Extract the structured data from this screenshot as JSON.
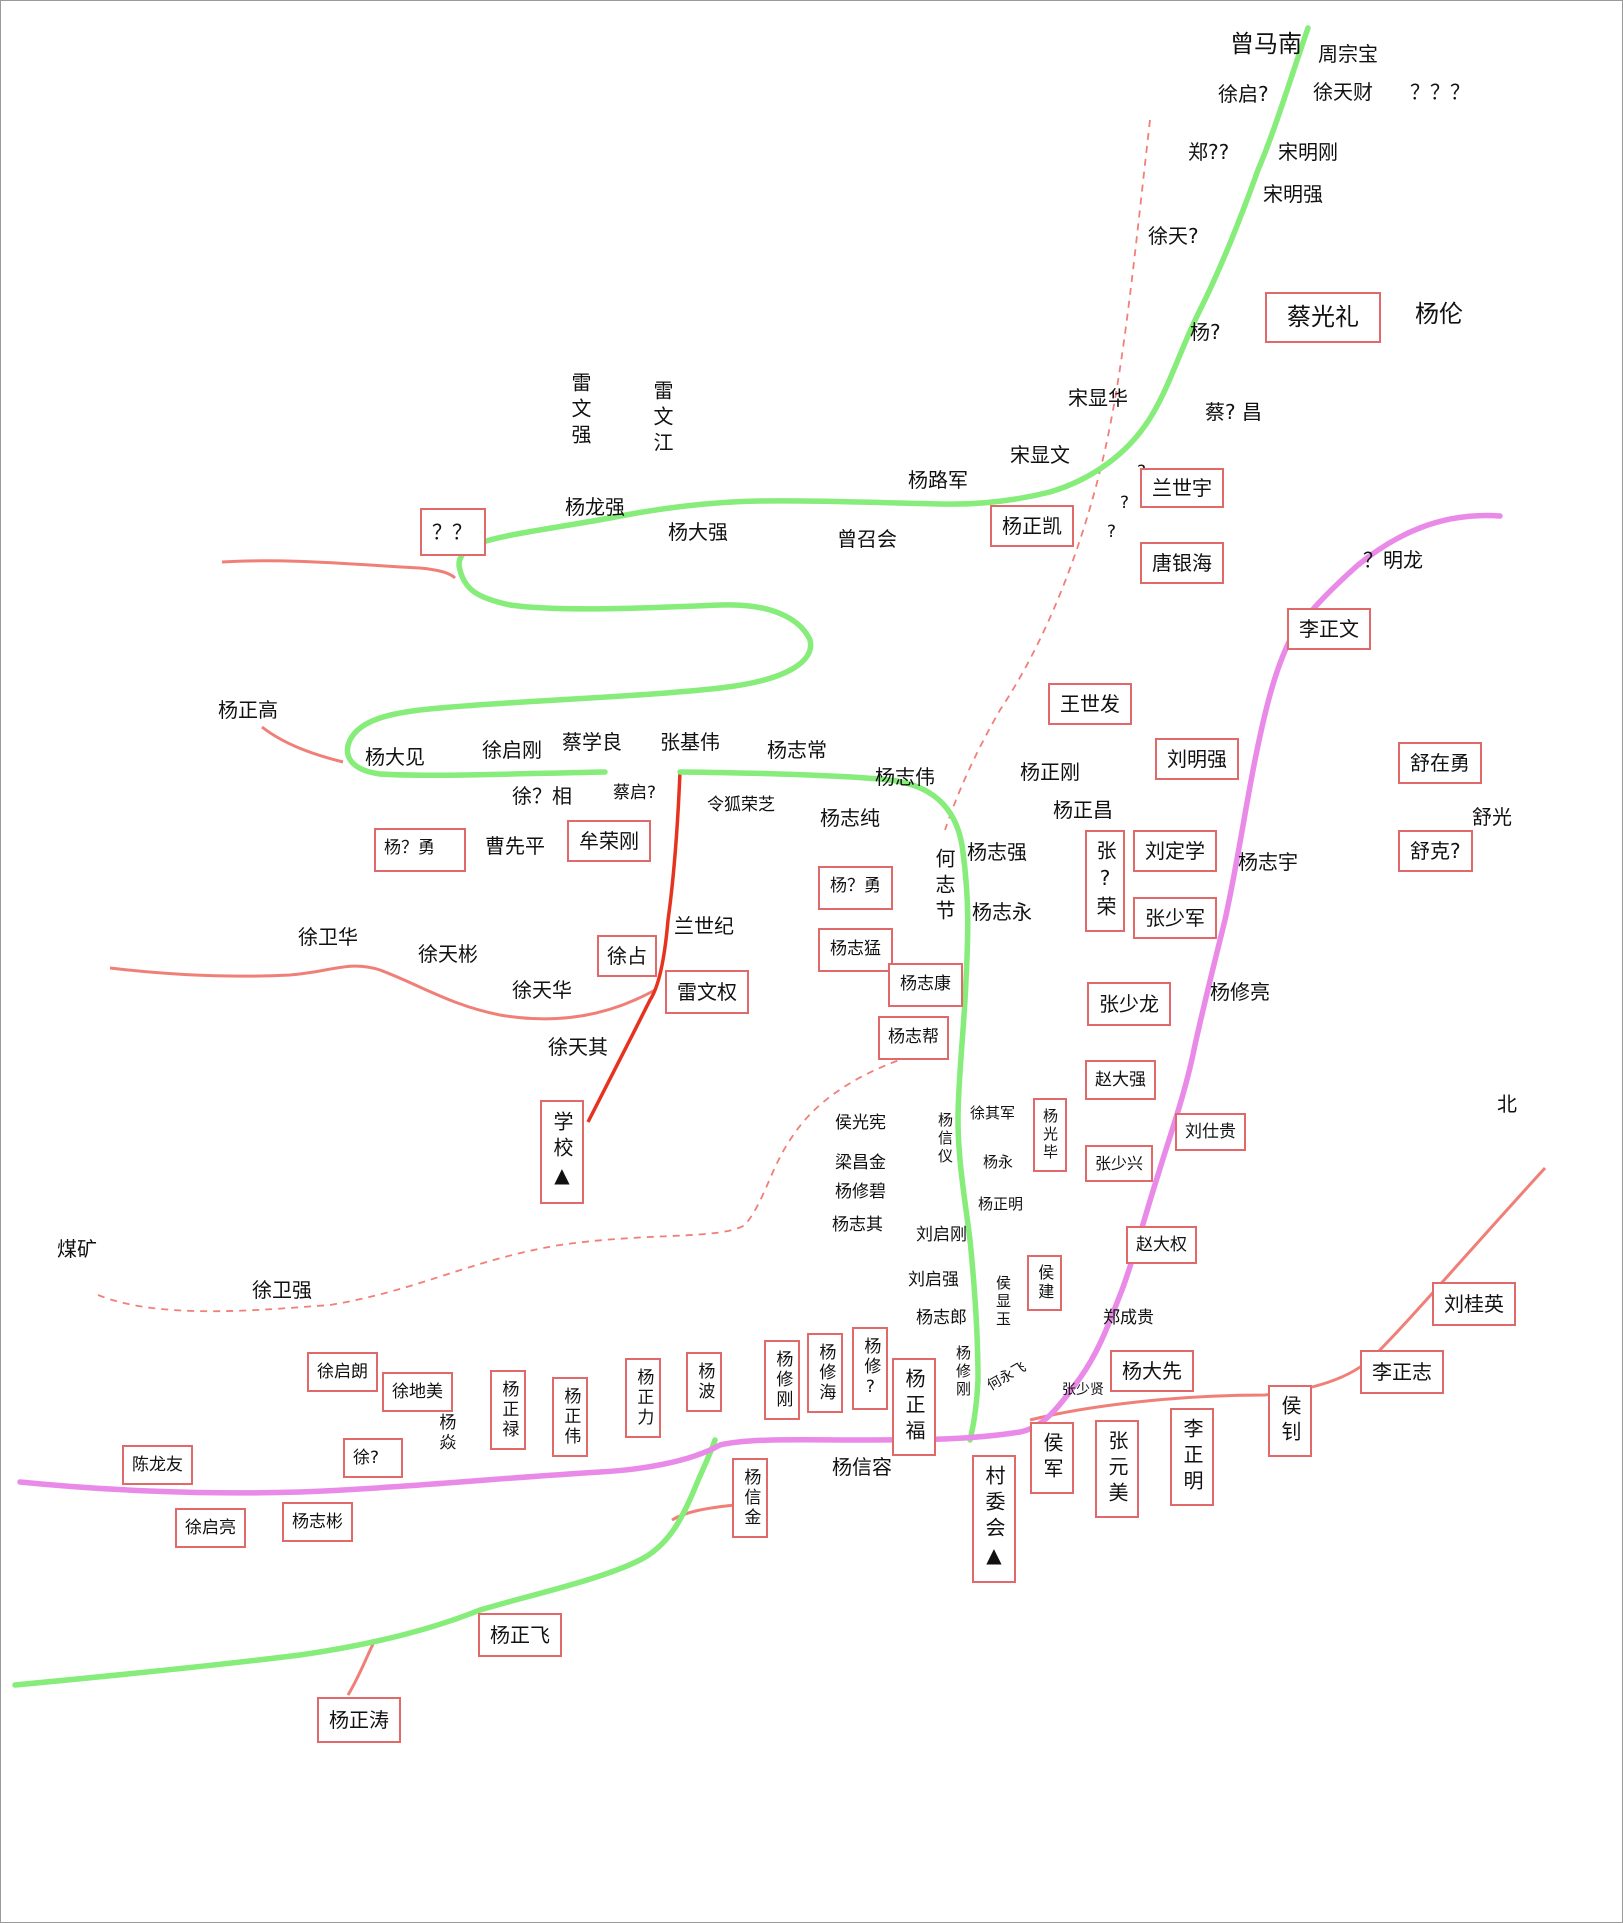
{
  "labels": {
    "zeng_manan": "曾马南",
    "zhou_zongbao": "周宗宝",
    "xu_qi_q": "徐启?",
    "xu_tiancai": "徐天财",
    "qqq": "？？？",
    "zheng_qq": "郑??",
    "song_minggang": "宋明刚",
    "song_mingqiang": "宋明强",
    "xu_tian_q": "徐天?",
    "cai_guangli": "蔡光礼",
    "yang_lun": "杨伦",
    "yang_q": "杨?",
    "song_xianhua": "宋显华",
    "cai_q_chang": "蔡? 昌",
    "song_xianwen": "宋显文",
    "yang_lujun": "杨路军",
    "q1": "?",
    "lan_shiyu": "兰世宇",
    "q2": "?",
    "yang_zhengkai": "杨正凯",
    "q3": "?",
    "tang_yinhai": "唐银海",
    "q_minglong": "？明龙",
    "lei_wenqiang": "雷文强",
    "lei_wenjiang": "雷文江",
    "yang_longqiang": "杨龙强",
    "yang_daqiang": "杨大强",
    "zeng_zhaohui": "曾召会",
    "qq": "？？",
    "li_zhengwen": "李正文",
    "wang_shifa": "王世发",
    "yang_zhenggao": "杨正高",
    "yang_dajian": "杨大见",
    "xu_qigang": "徐启刚",
    "cai_xueliang": "蔡学良",
    "zhang_jiwei": "张基伟",
    "yang_zhichang": "杨志常",
    "yang_zhiwei": "杨志伟",
    "yang_zhenggang": "杨正刚",
    "liu_mingqiang": "刘明强",
    "shu_zaiyong": "舒在勇",
    "xu_q_xiang": "徐？相",
    "cai_qi_q": "蔡启?",
    "linghu_rongzhi": "令狐荣芝",
    "yang_zhichun": "杨志纯",
    "yang_zhengchang": "杨正昌",
    "shu_guang": "舒光",
    "yang_q_yong_1": "杨？勇",
    "cao_xianping": "曹先平",
    "mou_ronggang": "牟荣刚",
    "he_zhijie": "何志节",
    "yang_zhiqiang": "杨志强",
    "zhang_q_rong": "张?荣",
    "liu_dingxue": "刘定学",
    "yang_zhiyu": "杨志宇",
    "shu_ke_q": "舒克?",
    "yang_q_yong_2": "杨？勇",
    "yang_zhiyong": "杨志永",
    "zhang_shaojun": "张少军",
    "lan_shiji": "兰世纪",
    "xu_weihua": "徐卫华",
    "xu_tianbin": "徐天彬",
    "xu_zhan": "徐占",
    "yang_zhimeng": "杨志猛",
    "yang_zhikang": "杨志康",
    "xu_tianhua": "徐天华",
    "lei_wenquan": "雷文权",
    "zhang_shaolong": "张少龙",
    "yang_xiuliang": "杨修亮",
    "yang_zhibang": "杨志帮",
    "xu_tianqi": "徐天其",
    "zhao_daqiang": "赵大强",
    "bei": "北",
    "school": "学校▲",
    "hou_guangxian": "侯光宪",
    "yang_xinyi": "杨信仪",
    "xu_qijun": "徐其军",
    "yang_guangbi": "杨光毕",
    "liu_shigui": "刘仕贵",
    "liang_changjin": "梁昌金",
    "yang_yong": "杨永",
    "zhang_shaoxing": "张少兴",
    "yang_xiubi": "杨修碧",
    "yang_zhengming_sm": "杨正明",
    "yang_zhiqi": "杨志其",
    "liu_qigang": "刘启刚",
    "zhao_daquan": "赵大权",
    "meikuang": "煤矿",
    "xu_weiqiang": "徐卫强",
    "liu_qiqiang": "刘启强",
    "hou_xianyu": "侯显玉",
    "hou_jian": "侯建",
    "liu_guiying": "刘桂英",
    "yang_zhilang": "杨志郎",
    "zheng_chenggui": "郑成贵",
    "xu_qilang": "徐启朗",
    "yang_xiugang": "杨修刚",
    "yang_xiuhai": "杨修海",
    "yang_xiu_q": "杨修?",
    "yang_zhengfu": "杨正福",
    "yang_xiugang2": "杨修刚",
    "yang_daxian": "杨大先",
    "li_zhengzhi": "李正志",
    "xu_dimei": "徐地美",
    "yang_zhenglu": "杨正禄",
    "yang_zhengwei": "杨正伟",
    "yang_zhengli": "杨正力",
    "yang_bo": "杨波",
    "he_yongfei": "何永飞",
    "zhang_shaoxian": "张少贤",
    "hou_zhao": "侯钊",
    "yang_yan": "杨焱",
    "xu_q": "徐?",
    "chen_longyou": "陈龙友",
    "yang_xinrong": "杨信容",
    "hou_jun": "侯军",
    "zhang_yuanmei": "张元美",
    "li_zhengming": "李正明",
    "village_committee": "村委会▲",
    "yang_xinjin": "杨信金",
    "xu_qiliang": "徐启亮",
    "yang_zhibin": "杨志彬",
    "yang_zhengfei": "杨正飞",
    "yang_zhengtao": "杨正涛"
  },
  "colors": {
    "green_road": "#86ec7a",
    "pink_road": "#e98ae8",
    "salmon_road": "#f07f78",
    "red_road": "#e53320",
    "dashed_path": "#f07f78",
    "box_border": "#e06a6a"
  }
}
